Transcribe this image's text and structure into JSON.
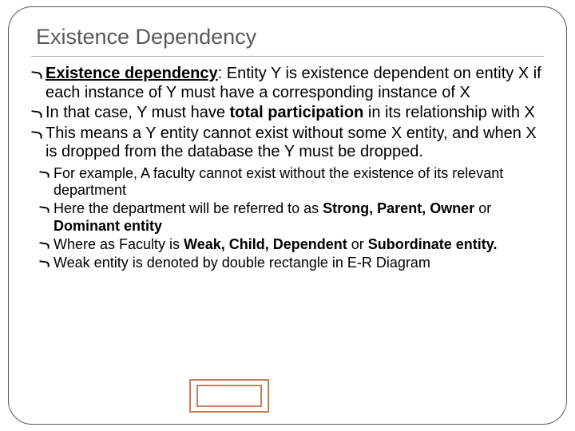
{
  "title": "Existence Dependency",
  "b1": {
    "p1a": "Existence dependency",
    "p1b": ":  Entity Y is existence dependent on entity X if each instance of Y must have a corresponding instance of X",
    "p2a": "In that case, Y must have ",
    "p2b": "total participation",
    "p2c": " in its relationship with X",
    "p3": "This means a Y entity cannot exist without some X entity, and when X is dropped from the database the Y must be dropped."
  },
  "b2": {
    "s1": "For example, A faculty cannot exist without the existence of its relevant department",
    "s2a": "Here the department will be referred to as ",
    "s2b": "Strong, Parent, Owner ",
    "s2c": "or",
    "s2d": " Dominant entity",
    "s3a": "Where as Faculty is ",
    "s3b": "Weak, Child, Dependent ",
    "s3c": "or",
    "s3d": " Subordinate entity.",
    "s4": "Weak entity is denoted by double rectangle in E-R Diagram"
  },
  "colors": {
    "frame_border": "#595959",
    "title_color": "#595959",
    "text_color": "#000000",
    "rect_border": "#c08062",
    "background": "#ffffff"
  }
}
